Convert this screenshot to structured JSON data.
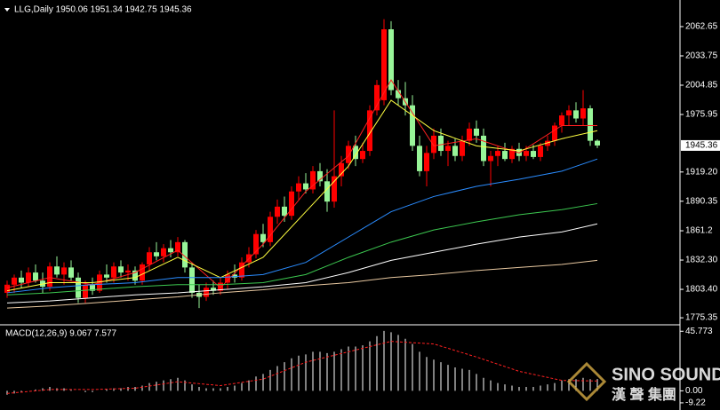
{
  "chart_data": [
    {
      "type": "candlestick",
      "title": "LLG,Daily  1950.06 1951.34 1942.75 1945.36",
      "up_color": "#ff0000",
      "down_color": "#98f598",
      "ylim": [
        1769.3,
        2088.9
      ],
      "yticks": [
        2062.65,
        2033.75,
        2004.85,
        1975.95,
        {
          "value": 1919.2,
          "label": "1919.20"
        },
        1890.35,
        1861.2,
        {
          "value": 1832.3,
          "label": "1832.30"
        },
        {
          "value": 1803.4,
          "label": "1803.40"
        },
        1775.35
      ],
      "last_price": 1945.36,
      "ohlc": [
        [
          1800,
          1812,
          1795,
          1808
        ],
        [
          1808,
          1818,
          1800,
          1815
        ],
        [
          1815,
          1822,
          1805,
          1810
        ],
        [
          1810,
          1825,
          1806,
          1820
        ],
        [
          1820,
          1828,
          1810,
          1812
        ],
        [
          1812,
          1820,
          1800,
          1806
        ],
        [
          1806,
          1830,
          1802,
          1826
        ],
        [
          1826,
          1836,
          1815,
          1818
        ],
        [
          1818,
          1830,
          1808,
          1825
        ],
        [
          1825,
          1832,
          1812,
          1815
        ],
        [
          1815,
          1820,
          1790,
          1795
        ],
        [
          1795,
          1812,
          1790,
          1808
        ],
        [
          1808,
          1815,
          1798,
          1802
        ],
        [
          1802,
          1822,
          1800,
          1818
        ],
        [
          1818,
          1828,
          1810,
          1815
        ],
        [
          1815,
          1830,
          1810,
          1826
        ],
        [
          1826,
          1832,
          1815,
          1820
        ],
        [
          1820,
          1828,
          1812,
          1822
        ],
        [
          1822,
          1826,
          1808,
          1812
        ],
        [
          1812,
          1830,
          1808,
          1828
        ],
        [
          1828,
          1845,
          1822,
          1840
        ],
        [
          1840,
          1850,
          1832,
          1836
        ],
        [
          1836,
          1848,
          1830,
          1844
        ],
        [
          1844,
          1852,
          1835,
          1840
        ],
        [
          1840,
          1855,
          1836,
          1850
        ],
        [
          1850,
          1852,
          1820,
          1825
        ],
        [
          1825,
          1830,
          1795,
          1800
        ],
        [
          1800,
          1808,
          1785,
          1796
        ],
        [
          1796,
          1810,
          1792,
          1805
        ],
        [
          1805,
          1812,
          1798,
          1802
        ],
        [
          1802,
          1815,
          1798,
          1810
        ],
        [
          1810,
          1822,
          1804,
          1818
        ],
        [
          1818,
          1828,
          1810,
          1815
        ],
        [
          1815,
          1835,
          1812,
          1830
        ],
        [
          1830,
          1845,
          1825,
          1838
        ],
        [
          1838,
          1862,
          1834,
          1858
        ],
        [
          1858,
          1868,
          1845,
          1850
        ],
        [
          1850,
          1880,
          1846,
          1875
        ],
        [
          1875,
          1892,
          1868,
          1885
        ],
        [
          1885,
          1895,
          1870,
          1876
        ],
        [
          1876,
          1905,
          1872,
          1900
        ],
        [
          1900,
          1915,
          1892,
          1908
        ],
        [
          1908,
          1918,
          1898,
          1902
        ],
        [
          1902,
          1925,
          1898,
          1920
        ],
        [
          1920,
          1928,
          1905,
          1910
        ],
        [
          1910,
          1922,
          1880,
          1890
        ],
        [
          1890,
          1980,
          1884,
          1915
        ],
        [
          1915,
          1935,
          1905,
          1928
        ],
        [
          1928,
          1950,
          1922,
          1945
        ],
        [
          1945,
          1955,
          1925,
          1932
        ],
        [
          1932,
          1948,
          1928,
          1940
        ],
        [
          1940,
          1985,
          1935,
          1980
        ],
        [
          1980,
          2010,
          1975,
          2005
        ],
        [
          1990,
          2070,
          1985,
          2060
        ],
        [
          2060,
          2068,
          1995,
          2000
        ],
        [
          2000,
          2010,
          1985,
          1992
        ],
        [
          1992,
          2008,
          1975,
          1985
        ],
        [
          1985,
          1995,
          1940,
          1945
        ],
        [
          1945,
          1955,
          1915,
          1920
        ],
        [
          1920,
          1945,
          1905,
          1938
        ],
        [
          1938,
          1962,
          1932,
          1955
        ],
        [
          1955,
          1962,
          1935,
          1940
        ],
        [
          1940,
          1950,
          1925,
          1945
        ],
        [
          1945,
          1952,
          1930,
          1935
        ],
        [
          1935,
          1955,
          1930,
          1950
        ],
        [
          1950,
          1968,
          1945,
          1962
        ],
        [
          1962,
          1970,
          1948,
          1955
        ],
        [
          1955,
          1962,
          1925,
          1930
        ],
        [
          1930,
          1940,
          1905,
          1935
        ],
        [
          1935,
          1945,
          1925,
          1940
        ],
        [
          1940,
          1948,
          1930,
          1932
        ],
        [
          1932,
          1945,
          1928,
          1942
        ],
        [
          1942,
          1948,
          1930,
          1935
        ],
        [
          1935,
          1945,
          1930,
          1940
        ],
        [
          1940,
          1946,
          1932,
          1934
        ],
        [
          1934,
          1948,
          1930,
          1945
        ],
        [
          1945,
          1955,
          1940,
          1950
        ],
        [
          1950,
          1968,
          1945,
          1965
        ],
        [
          1965,
          1978,
          1958,
          1975
        ],
        [
          1975,
          1985,
          1965,
          1980
        ],
        [
          1980,
          1988,
          1968,
          1972
        ],
        [
          1972,
          2000,
          1965,
          1982
        ],
        [
          1982,
          1985,
          1945,
          1950
        ],
        [
          1950.06,
          1951.34,
          1942.75,
          1945.36
        ]
      ],
      "series": [
        {
          "color": "#ff2020",
          "x": [
            0,
            6,
            12,
            18,
            24,
            30,
            36,
            42,
            48,
            54,
            60,
            66,
            72,
            78,
            83
          ],
          "values": [
            1805,
            1815,
            1808,
            1820,
            1842,
            1805,
            1848,
            1900,
            1935,
            2010,
            1945,
            1952,
            1938,
            1965,
            1965
          ]
        },
        {
          "color": "#ffff40",
          "x": [
            0,
            6,
            12,
            18,
            24,
            30,
            36,
            42,
            48,
            54,
            60,
            66,
            72,
            78,
            83
          ],
          "values": [
            1802,
            1810,
            1810,
            1815,
            1835,
            1815,
            1835,
            1880,
            1925,
            1990,
            1960,
            1945,
            1940,
            1952,
            1960
          ]
        },
        {
          "color": "#2a8cff",
          "x": [
            0,
            6,
            12,
            18,
            24,
            30,
            36,
            42,
            48,
            54,
            60,
            66,
            72,
            78,
            83
          ],
          "values": [
            1800,
            1805,
            1808,
            1810,
            1815,
            1815,
            1818,
            1830,
            1855,
            1880,
            1895,
            1905,
            1912,
            1920,
            1932
          ]
        },
        {
          "color": "#3cc850",
          "x": [
            0,
            6,
            12,
            18,
            24,
            30,
            36,
            42,
            48,
            54,
            60,
            66,
            72,
            78,
            83
          ],
          "values": [
            1798,
            1800,
            1803,
            1806,
            1808,
            1808,
            1810,
            1818,
            1835,
            1850,
            1862,
            1870,
            1877,
            1882,
            1888
          ]
        },
        {
          "color": "#ffffff",
          "x": [
            0,
            6,
            12,
            18,
            24,
            30,
            36,
            42,
            48,
            54,
            60,
            66,
            72,
            78,
            83
          ],
          "values": [
            1790,
            1792,
            1795,
            1798,
            1800,
            1803,
            1806,
            1810,
            1820,
            1832,
            1840,
            1848,
            1855,
            1860,
            1868
          ]
        },
        {
          "color": "#e8c8a0",
          "x": [
            0,
            6,
            12,
            18,
            24,
            30,
            36,
            42,
            48,
            54,
            60,
            66,
            72,
            78,
            83
          ],
          "values": [
            1785,
            1787,
            1790,
            1793,
            1796,
            1800,
            1803,
            1807,
            1810,
            1815,
            1818,
            1822,
            1825,
            1828,
            1832
          ]
        }
      ]
    },
    {
      "type": "macd",
      "title": "MACD(12,26,9) 9.067 7.577",
      "ylim": [
        -12,
        48
      ],
      "yticks": [
        45.773,
        {
          "value": 0,
          "label": "0.00"
        },
        -9.22
      ],
      "histogram_color": "#ffffff",
      "histogram": [
        -3,
        -2,
        -1,
        0,
        1,
        2,
        3,
        2,
        2,
        1,
        0,
        -1,
        -1,
        0,
        1,
        2,
        2,
        3,
        3,
        4,
        6,
        7,
        8,
        9,
        10,
        8,
        5,
        3,
        2,
        2,
        2,
        3,
        4,
        6,
        8,
        11,
        13,
        16,
        19,
        22,
        25,
        27,
        28,
        30,
        30,
        29,
        30,
        32,
        34,
        34,
        35,
        38,
        42,
        46,
        45,
        43,
        40,
        36,
        30,
        26,
        24,
        22,
        20,
        18,
        17,
        16,
        13,
        10,
        8,
        6,
        5,
        4,
        3,
        3,
        3,
        4,
        5,
        6,
        8,
        9,
        9,
        10,
        9,
        9.067
      ],
      "signal": {
        "color": "#ff2020",
        "x": [
          0,
          6,
          12,
          18,
          24,
          30,
          36,
          42,
          48,
          54,
          60,
          66,
          72,
          78,
          83
        ],
        "values": [
          -2,
          1,
          1,
          2,
          7,
          4,
          9,
          22,
          30,
          38,
          36,
          26,
          15,
          8,
          7.577
        ]
      }
    }
  ],
  "watermark": {
    "brand": "SINO SOUND",
    "chinese": "漢 聲 集團"
  }
}
